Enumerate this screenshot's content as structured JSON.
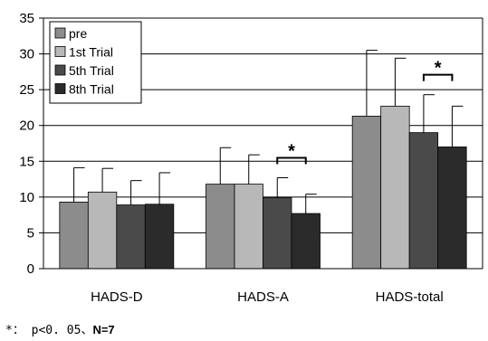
{
  "chart_data": {
    "type": "bar",
    "categories": [
      "HADS-D",
      "HADS-A",
      "HADS-total"
    ],
    "series": [
      {
        "name": "pre",
        "values": [
          9.3,
          11.8,
          21.3
        ],
        "errors": [
          4.8,
          5.1,
          9.2
        ],
        "color": "#8c8c8c"
      },
      {
        "name": "1st Trial",
        "values": [
          10.7,
          11.8,
          22.7
        ],
        "errors": [
          3.3,
          4.1,
          6.7
        ],
        "color": "#b8b8b8"
      },
      {
        "name": "5th Trial",
        "values": [
          8.9,
          9.9,
          19.0
        ],
        "errors": [
          3.4,
          2.8,
          5.3
        ],
        "color": "#4a4a4a"
      },
      {
        "name": "8th Trial",
        "values": [
          9.0,
          7.7,
          17.0
        ],
        "errors": [
          4.4,
          2.7,
          5.7
        ],
        "color": "#2b2b2b"
      }
    ],
    "ylim": [
      0,
      35
    ],
    "yticks": [
      0,
      5,
      10,
      15,
      20,
      25,
      30,
      35
    ],
    "grid": true,
    "legend_position": "top-left",
    "significance": [
      {
        "category": "HADS-A",
        "from_series": "5th Trial",
        "to_series": "8th Trial",
        "label": "*"
      },
      {
        "category": "HADS-total",
        "from_series": "5th Trial",
        "to_series": "8th Trial",
        "label": "*"
      }
    ]
  },
  "footnote": {
    "prefix": "*： p<0. 05、",
    "bold": "N=7"
  }
}
